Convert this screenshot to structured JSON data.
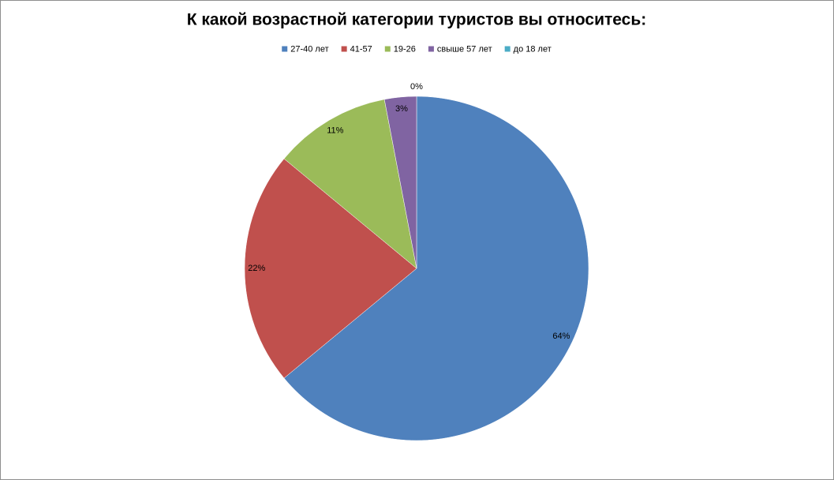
{
  "chart_data": {
    "type": "pie",
    "title": "К какой возрастной категории туристов вы относитесь:",
    "categories": [
      "27-40 лет",
      "41-57",
      "19-26",
      "свыше 57 лет",
      "до 18 лет"
    ],
    "values": [
      64,
      22,
      11,
      3,
      0
    ],
    "value_labels": [
      "64%",
      "22%",
      "11%",
      "3%",
      "0%"
    ],
    "colors": [
      "#4f81bd",
      "#c0504d",
      "#9bbb59",
      "#8064a2",
      "#4bacc6"
    ],
    "legend": "top"
  }
}
